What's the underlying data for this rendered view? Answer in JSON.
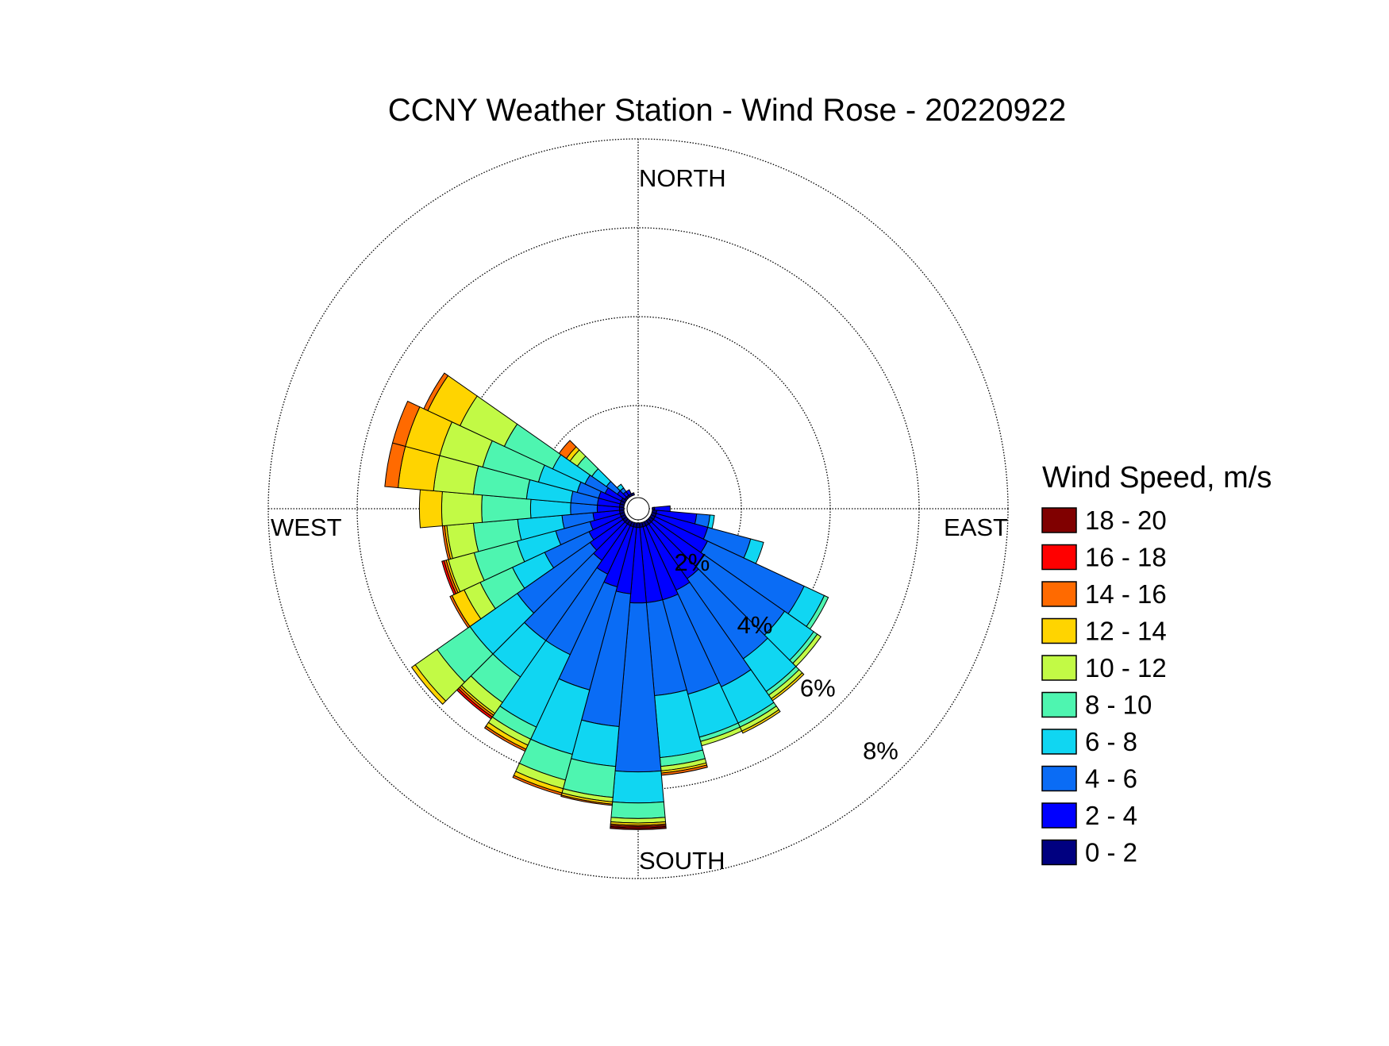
{
  "chart_data": {
    "type": "windrose",
    "title": "CCNY Weather Station - Wind Rose - 20220922",
    "legend_title": "Wind Speed, m/s",
    "direction_labels": [
      "NORTH",
      "EAST",
      "SOUTH",
      "WEST"
    ],
    "x": [
      0,
      10,
      20,
      30,
      40,
      50,
      60,
      70,
      80,
      90,
      100,
      110,
      120,
      130,
      140,
      150,
      160,
      170,
      180,
      190,
      200,
      210,
      220,
      230,
      240,
      250,
      260,
      270,
      280,
      290,
      300,
      310,
      320,
      330,
      340,
      350
    ],
    "xlim": [
      0,
      360
    ],
    "ylim": [
      0,
      8
    ],
    "yticks": [
      {
        "value": 2,
        "label": "2%"
      },
      {
        "value": 4,
        "label": "4%"
      },
      {
        "value": 6,
        "label": "6%"
      },
      {
        "value": 8,
        "label": "8%"
      }
    ],
    "grid": true,
    "legend_position": "right",
    "series": [
      {
        "name": "0 - 2",
        "color": "#000080",
        "values": [
          0,
          0,
          0,
          0,
          0,
          0,
          0,
          0,
          0,
          0.05,
          0.1,
          0.1,
          0.1,
          0.1,
          0.1,
          0.1,
          0.1,
          0.1,
          0.1,
          0.1,
          0.1,
          0.1,
          0.1,
          0.1,
          0.1,
          0.1,
          0.1,
          0.1,
          0.1,
          0.1,
          0.1,
          0.05,
          0.05,
          0.05,
          0.05,
          0
        ]
      },
      {
        "name": "2 - 4",
        "color": "#0000ff",
        "values": [
          0,
          0,
          0,
          0,
          0,
          0,
          0,
          0,
          0,
          0.35,
          0.9,
          1.2,
          1.3,
          1.4,
          1.5,
          1.6,
          1.7,
          1.7,
          1.7,
          1.5,
          1.4,
          1.2,
          1.0,
          0.9,
          0.8,
          0.7,
          0.6,
          0.5,
          0.5,
          0.5,
          0.4,
          0.2,
          0.1,
          0.1,
          0,
          0
        ]
      },
      {
        "name": "4 - 6",
        "color": "#0a6cf5",
        "values": [
          0,
          0,
          0,
          0,
          0,
          0,
          0,
          0,
          0,
          0,
          0.3,
          1.0,
          2.4,
          2.2,
          2.2,
          2.4,
          2.2,
          2.1,
          3.8,
          3.0,
          2.4,
          2.0,
          2.2,
          2.0,
          1.1,
          0.8,
          0.7,
          0.6,
          0.6,
          0.5,
          0.5,
          0.3,
          0.1,
          0,
          0,
          0
        ]
      },
      {
        "name": "6 - 8",
        "color": "#10d6f2",
        "values": [
          0,
          0,
          0,
          0,
          0,
          0,
          0,
          0,
          0,
          0,
          0.1,
          0.3,
          0.5,
          0.8,
          0.9,
          0.9,
          1.0,
          1.4,
          0.7,
          0.9,
          1.5,
          1.8,
          1.0,
          1.3,
          0.8,
          0.9,
          1.0,
          0.9,
          1.0,
          0.9,
          0.8,
          0.4,
          0.1,
          0,
          0,
          0
        ]
      },
      {
        "name": "8 - 10",
        "color": "#4ef5b0",
        "values": [
          0,
          0,
          0,
          0,
          0,
          0,
          0,
          0,
          0,
          0,
          0,
          0,
          0.1,
          0.1,
          0.1,
          0.1,
          0.1,
          0.2,
          0.35,
          0.7,
          0.6,
          0.3,
          0.7,
          0.9,
          0.8,
          1.0,
          1.0,
          1.1,
          1.2,
          1.3,
          1.2,
          0.4,
          0,
          0,
          0,
          0
        ]
      },
      {
        "name": "10 - 12",
        "color": "#c2fa45",
        "values": [
          0,
          0,
          0,
          0,
          0,
          0,
          0,
          0,
          0,
          0,
          0,
          0,
          0,
          0.1,
          0.1,
          0.1,
          0.1,
          0.1,
          0.1,
          0.1,
          0.2,
          0.15,
          0.3,
          0.6,
          0.4,
          0.6,
          0.6,
          0.9,
          0.9,
          1.0,
          1.1,
          0.2,
          0,
          0,
          0,
          0
        ]
      },
      {
        "name": "12 - 14",
        "color": "#ffd400",
        "values": [
          0,
          0,
          0,
          0,
          0,
          0,
          0,
          0,
          0,
          0,
          0,
          0,
          0,
          0,
          0.05,
          0.05,
          0,
          0.05,
          0.05,
          0.05,
          0.1,
          0.1,
          0.05,
          0.1,
          0.3,
          0.05,
          0.05,
          0.5,
          0.8,
          0.8,
          0.8,
          0.1,
          0,
          0,
          0,
          0
        ]
      },
      {
        "name": "14 - 16",
        "color": "#ff6a00",
        "values": [
          0,
          0,
          0,
          0,
          0,
          0,
          0,
          0,
          0,
          0,
          0,
          0,
          0,
          0,
          0,
          0,
          0,
          0.05,
          0.03,
          0.03,
          0.05,
          0.05,
          0.05,
          0,
          0.05,
          0.05,
          0.05,
          0,
          0.3,
          0.3,
          0.1,
          0.2,
          0,
          0,
          0,
          0
        ]
      },
      {
        "name": "16 - 18",
        "color": "#ff0000",
        "values": [
          0,
          0,
          0,
          0,
          0,
          0,
          0,
          0,
          0,
          0,
          0,
          0,
          0,
          0,
          0,
          0,
          0,
          0,
          0.03,
          0,
          0,
          0,
          0.05,
          0,
          0,
          0.05,
          0,
          0,
          0,
          0,
          0,
          0,
          0,
          0,
          0,
          0
        ]
      },
      {
        "name": "18 - 20",
        "color": "#800000",
        "values": [
          0,
          0,
          0,
          0,
          0,
          0,
          0,
          0,
          0,
          0,
          0,
          0,
          0,
          0,
          0,
          0,
          0,
          0,
          0.04,
          0,
          0,
          0,
          0,
          0,
          0,
          0,
          0,
          0,
          0,
          0,
          0,
          0,
          0,
          0,
          0,
          0
        ]
      }
    ]
  }
}
